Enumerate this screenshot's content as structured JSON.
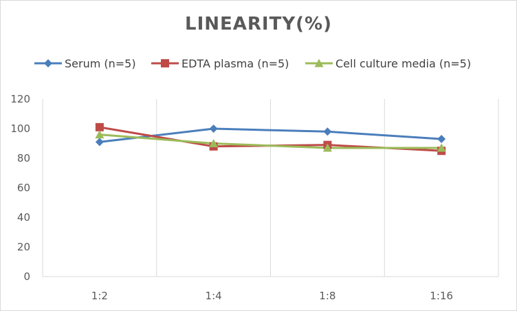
{
  "chart_data": {
    "type": "line",
    "title": "LINEARITY(%)",
    "xlabel": "",
    "ylabel": "",
    "categories": [
      "1:2",
      "1:4",
      "1:8",
      "1:16"
    ],
    "ylim": [
      0,
      120
    ],
    "yticks": [
      0,
      20,
      40,
      60,
      80,
      100,
      120
    ],
    "grid": "vertical",
    "legend": "top",
    "series": [
      {
        "name": "Serum (n=5)",
        "values": [
          91,
          100,
          98,
          93
        ],
        "color": "#4a7ebb",
        "marker": "diamond"
      },
      {
        "name": "EDTA plasma (n=5)",
        "values": [
          101,
          88,
          89,
          85
        ],
        "color": "#be4b48",
        "marker": "square"
      },
      {
        "name": "Cell culture media (n=5)",
        "values": [
          96,
          90,
          87,
          87
        ],
        "color": "#9bbb59",
        "marker": "triangle"
      }
    ]
  }
}
